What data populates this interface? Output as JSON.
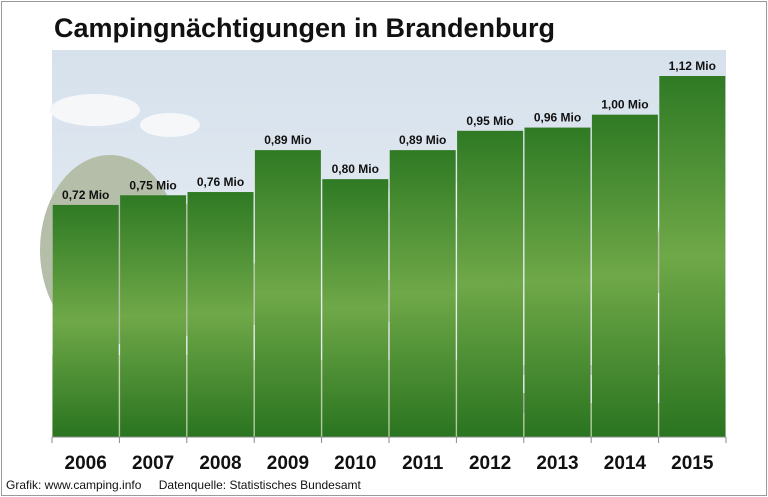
{
  "title": "Campingnächtigungen in Brandenburg",
  "footer": {
    "credit": "Grafik: www.camping.info",
    "source": "Datenquelle:  Statistisches Bundesamt"
  },
  "colors": {
    "bar_light": "#6fa848",
    "bar_dark": "#2c7a22",
    "photo_sky": "#dfe6ee",
    "photo_grass": "#b9cba5"
  },
  "chart_data": {
    "type": "bar",
    "title": "Campingnächtigungen in Brandenburg",
    "categories": [
      "2006",
      "2007",
      "2008",
      "2009",
      "2010",
      "2011",
      "2012",
      "2013",
      "2014",
      "2015"
    ],
    "values": [
      0.72,
      0.75,
      0.76,
      0.89,
      0.8,
      0.89,
      0.95,
      0.96,
      1.0,
      1.12
    ],
    "value_labels": [
      "0,72 Mio",
      "0,75 Mio",
      "0,76 Mio",
      "0,89 Mio",
      "0,80 Mio",
      "0,89 Mio",
      "0,95 Mio",
      "0,96 Mio",
      "1,00 Mio",
      "1,12 Mio"
    ],
    "unit": "Mio",
    "ylim": [
      0,
      1.12
    ],
    "grid": false,
    "legend": "none",
    "background": "photo of a campground with caravans and trees"
  }
}
